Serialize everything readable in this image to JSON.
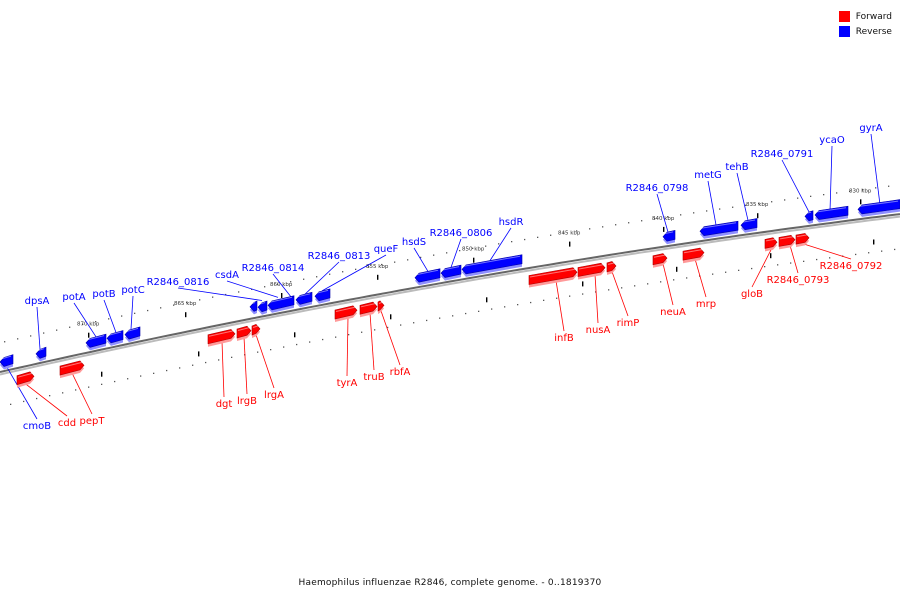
{
  "caption": "Haemophilus influenzae R2846, complete genome. - 0..1819370",
  "legend": [
    {
      "label": "Forward",
      "color": "#ff0000"
    },
    {
      "label": "Reverse",
      "color": "#0000ff"
    }
  ],
  "colors": {
    "forward": "#ff0000",
    "reverse": "#0000ff",
    "backbone": "#666666"
  },
  "kbp_ticks": [
    "830 kbp",
    "835 kbp",
    "840 kbp",
    "845 kbp",
    "850 kbp",
    "855 kbp",
    "860 kbp",
    "865 kbp",
    "870 kbp"
  ],
  "genes": [
    {
      "name": "gyrA",
      "strand": "reverse"
    },
    {
      "name": "ycaO",
      "strand": "reverse"
    },
    {
      "name": "R2846_0791",
      "strand": "reverse"
    },
    {
      "name": "tehB",
      "strand": "reverse"
    },
    {
      "name": "metG",
      "strand": "reverse"
    },
    {
      "name": "R2846_0798",
      "strand": "reverse"
    },
    {
      "name": "hsdR",
      "strand": "reverse"
    },
    {
      "name": "R2846_0806",
      "strand": "reverse"
    },
    {
      "name": "hsdS",
      "strand": "reverse"
    },
    {
      "name": "queF",
      "strand": "reverse"
    },
    {
      "name": "R2846_0813",
      "strand": "reverse"
    },
    {
      "name": "R2846_0814",
      "strand": "reverse"
    },
    {
      "name": "csdA",
      "strand": "reverse"
    },
    {
      "name": "R2846_0816",
      "strand": "reverse"
    },
    {
      "name": "potC",
      "strand": "reverse"
    },
    {
      "name": "potB",
      "strand": "reverse"
    },
    {
      "name": "potA",
      "strand": "reverse"
    },
    {
      "name": "dpsA",
      "strand": "reverse"
    },
    {
      "name": "cmoB",
      "strand": "reverse"
    },
    {
      "name": "cdd",
      "strand": "forward"
    },
    {
      "name": "pepT",
      "strand": "forward"
    },
    {
      "name": "dgt",
      "strand": "forward"
    },
    {
      "name": "lrgB",
      "strand": "forward"
    },
    {
      "name": "lrgA",
      "strand": "forward"
    },
    {
      "name": "tyrA",
      "strand": "forward"
    },
    {
      "name": "truB",
      "strand": "forward"
    },
    {
      "name": "rbfA",
      "strand": "forward"
    },
    {
      "name": "infB",
      "strand": "forward"
    },
    {
      "name": "nusA",
      "strand": "forward"
    },
    {
      "name": "rimP",
      "strand": "forward"
    },
    {
      "name": "neuA",
      "strand": "forward"
    },
    {
      "name": "mrp",
      "strand": "forward"
    },
    {
      "name": "gloB",
      "strand": "forward"
    },
    {
      "name": "R2846_0793",
      "strand": "forward"
    },
    {
      "name": "R2846_0792",
      "strand": "forward"
    }
  ]
}
